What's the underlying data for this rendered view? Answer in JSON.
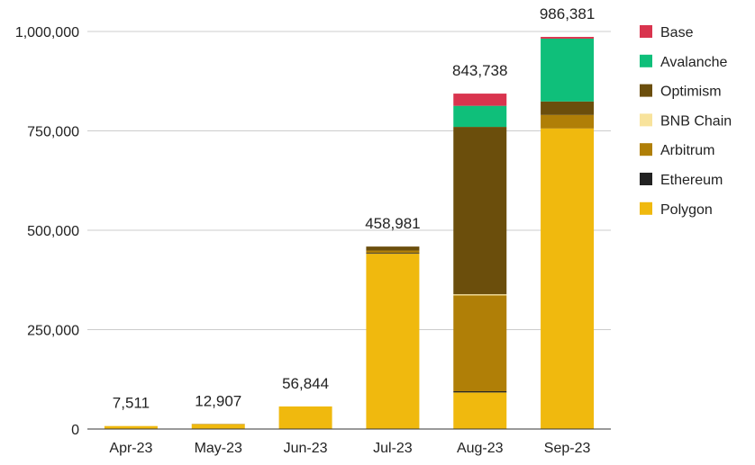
{
  "chart_data": {
    "type": "bar",
    "stacked": true,
    "title": "",
    "xlabel": "",
    "ylabel": "",
    "ylim": [
      0,
      1000000
    ],
    "yticks": [
      0,
      250000,
      500000,
      750000,
      1000000
    ],
    "ytick_labels": [
      "0",
      "250,000",
      "500,000",
      "750,000",
      "1,000,000"
    ],
    "grid": true,
    "legend_position": "right",
    "categories": [
      "Apr-23",
      "May-23",
      "Jun-23",
      "Jul-23",
      "Aug-23",
      "Sep-23"
    ],
    "totals": [
      7511,
      12907,
      56844,
      458981,
      843738,
      986381
    ],
    "total_labels": [
      "7,511",
      "12,907",
      "56,844",
      "458,981",
      "843,738",
      "986,381"
    ],
    "series": [
      {
        "name": "Polygon",
        "color": "#f0b90e",
        "values": [
          7511,
          11907,
          56844,
          441000,
          92000,
          756000
        ]
      },
      {
        "name": "Ethereum",
        "color": "#222222",
        "values": [
          0,
          0,
          0,
          2000,
          3000,
          0
        ]
      },
      {
        "name": "Arbitrum",
        "color": "#b07f07",
        "values": [
          0,
          1000,
          0,
          6000,
          241000,
          34000
        ]
      },
      {
        "name": "BNB Chain",
        "color": "#f8e39c",
        "values": [
          0,
          0,
          0,
          0,
          3000,
          0
        ]
      },
      {
        "name": "Optimism",
        "color": "#6b4e0c",
        "values": [
          0,
          0,
          0,
          9981,
          421000,
          34000
        ]
      },
      {
        "name": "Avalanche",
        "color": "#0fbf7a",
        "values": [
          0,
          0,
          0,
          0,
          53000,
          158000
        ]
      },
      {
        "name": "Base",
        "color": "#d9344e",
        "values": [
          0,
          0,
          0,
          0,
          30738,
          4381
        ]
      }
    ],
    "legend_order": [
      "Base",
      "Avalanche",
      "Optimism",
      "BNB Chain",
      "Arbitrum",
      "Ethereum",
      "Polygon"
    ]
  }
}
